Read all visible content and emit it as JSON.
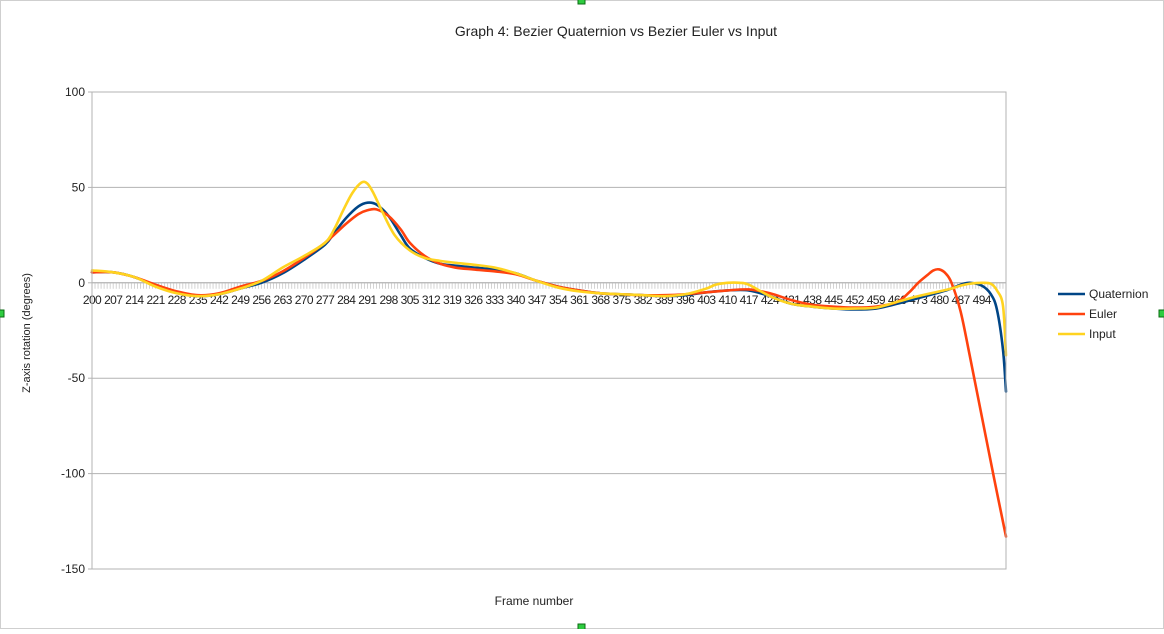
{
  "chart_data": {
    "type": "line",
    "title": "Graph 4: Bezier Quaternion vs Bezier Euler vs Input",
    "xlabel": "Frame number",
    "ylabel": "Z-axis rotation (degrees)",
    "ylim": [
      -150,
      100
    ],
    "yticks": [
      100,
      50,
      0,
      -50,
      -100,
      -150
    ],
    "xlim": [
      200,
      502
    ],
    "xticks": [
      200,
      207,
      214,
      221,
      228,
      235,
      242,
      249,
      256,
      263,
      270,
      277,
      284,
      291,
      298,
      305,
      312,
      319,
      326,
      333,
      340,
      347,
      354,
      361,
      368,
      375,
      382,
      389,
      396,
      403,
      410,
      417,
      424,
      431,
      438,
      445,
      452,
      459,
      466,
      473,
      480,
      487,
      494
    ],
    "grid": true,
    "legend": "right",
    "series": [
      {
        "name": "Quaternion",
        "color": "#004586",
        "x": [
          200,
          207,
          214,
          221,
          228,
          235,
          242,
          249,
          256,
          263,
          270,
          277,
          280,
          284,
          288,
          291,
          294,
          298,
          302,
          305,
          310,
          315,
          320,
          326,
          333,
          340,
          347,
          354,
          361,
          368,
          375,
          382,
          389,
          396,
          403,
          410,
          417,
          424,
          431,
          438,
          445,
          452,
          459,
          466,
          473,
          480,
          484,
          487,
          490,
          494,
          497,
          499,
          501,
          502
        ],
        "y": [
          5.5,
          5.5,
          3,
          -1.5,
          -5,
          -7,
          -6,
          -3,
          0,
          5,
          12,
          20,
          26,
          34,
          40,
          42,
          41,
          35,
          25,
          18,
          13,
          10,
          9,
          8,
          7,
          5,
          1,
          -2,
          -4,
          -5.5,
          -6,
          -6.5,
          -7,
          -6.5,
          -5,
          -4,
          -4,
          -7,
          -11,
          -12.5,
          -13.5,
          -14,
          -13.5,
          -11,
          -8,
          -5,
          -3,
          -1,
          0,
          -1.5,
          -6,
          -14,
          -35,
          -57
        ]
      },
      {
        "name": "Euler",
        "color": "#ff420e",
        "x": [
          200,
          207,
          214,
          221,
          228,
          235,
          242,
          249,
          256,
          263,
          270,
          277,
          284,
          288,
          291,
          294,
          298,
          302,
          305,
          310,
          315,
          320,
          326,
          333,
          340,
          347,
          354,
          361,
          368,
          375,
          382,
          389,
          396,
          403,
          410,
          417,
          424,
          431,
          438,
          445,
          452,
          459,
          466,
          470,
          473,
          476,
          478,
          480,
          482,
          484,
          487,
          490,
          494,
          498,
          502
        ],
        "y": [
          5.5,
          5.5,
          3,
          -1,
          -4.5,
          -6.5,
          -5.5,
          -2,
          1,
          6,
          13,
          21,
          31,
          36,
          38,
          38.5,
          35,
          28,
          21,
          14,
          10,
          8,
          7,
          6,
          4.5,
          1,
          -2,
          -4,
          -5.5,
          -6,
          -6.5,
          -6.5,
          -6,
          -5,
          -4,
          -3.5,
          -5.5,
          -9,
          -11.5,
          -12.5,
          -13,
          -12.5,
          -10,
          -5,
          0,
          4,
          6.5,
          7,
          5,
          0,
          -15,
          -38,
          -70,
          -102,
          -133
        ]
      },
      {
        "name": "Input",
        "color": "#ffd320",
        "x": [
          200,
          207,
          214,
          221,
          228,
          235,
          242,
          249,
          256,
          263,
          270,
          277,
          280,
          283,
          286,
          289,
          291,
          293,
          296,
          300,
          305,
          310,
          315,
          320,
          326,
          333,
          340,
          347,
          354,
          361,
          368,
          375,
          382,
          389,
          396,
          403,
          406,
          410,
          414,
          417,
          424,
          431,
          438,
          445,
          452,
          459,
          466,
          473,
          480,
          484,
          487,
          490,
          494,
          497,
          499,
          501,
          502
        ],
        "y": [
          6.5,
          5.5,
          3,
          -2,
          -5.5,
          -7,
          -6,
          -3,
          1,
          8,
          14,
          21,
          28,
          38,
          47,
          52.5,
          52,
          47,
          37,
          25,
          17,
          13,
          11.5,
          10.5,
          9.5,
          8,
          5,
          1,
          -2.5,
          -4.5,
          -5.5,
          -6,
          -6.5,
          -7,
          -6,
          -3,
          -1,
          0,
          0,
          -1,
          -7,
          -11,
          -12.5,
          -13.5,
          -13.5,
          -13,
          -10,
          -7,
          -4.5,
          -3,
          -1.5,
          -0.5,
          0,
          -0.5,
          -4,
          -12,
          -38
        ]
      }
    ]
  }
}
